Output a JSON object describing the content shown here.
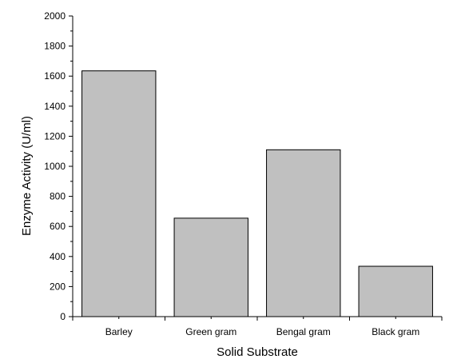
{
  "chart_data": {
    "type": "bar",
    "xlabel": "Solid  Substrate",
    "ylabel": "Enzyme Activity (U/ml)",
    "categories": [
      "Barley",
      "Green gram",
      "Bengal gram",
      "Black gram"
    ],
    "values": [
      1635,
      655,
      1110,
      335
    ],
    "ylim": [
      0,
      2000
    ],
    "yticks": [
      "0",
      "200",
      "400",
      "600",
      "800",
      "1000",
      "1200",
      "1400",
      "1600",
      "1800",
      "2000"
    ],
    "grid": false,
    "bar_color": "#c0c0c0",
    "bar_edge_color": "#000000"
  }
}
